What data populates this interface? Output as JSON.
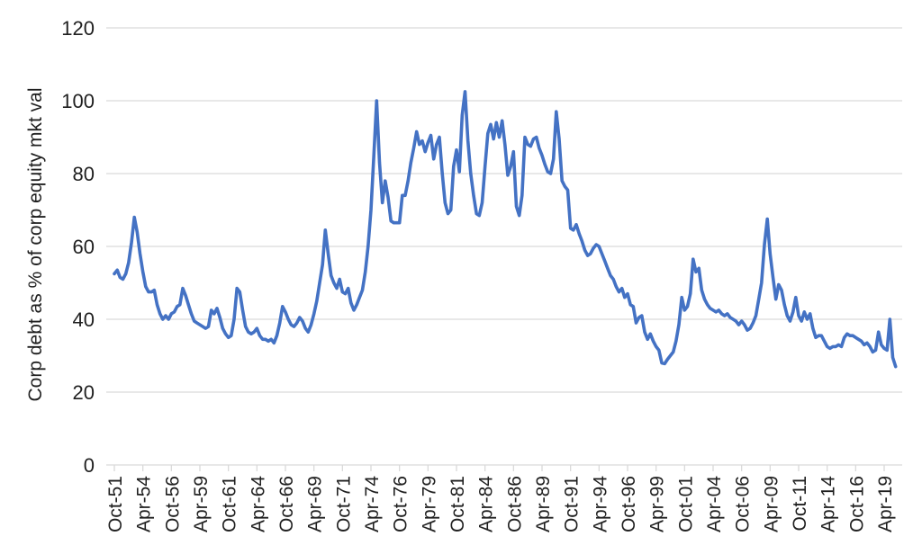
{
  "chart_data": {
    "type": "line",
    "title": "",
    "xlabel": "",
    "ylabel": "Corp debt as % of corp equity mkt val",
    "ylim": [
      0,
      120
    ],
    "y_ticks": [
      0,
      20,
      40,
      60,
      80,
      100,
      120
    ],
    "grid": "horizontal",
    "legend_position": "none",
    "line_color": "#4472C4",
    "axis_color": "#D9D9D9",
    "text_color": "#1F1F1F",
    "background_color": "#FFFFFF",
    "x_start": "1951-Q4",
    "x_end": "2020-Q2",
    "frequency": "quarterly",
    "x_ticks_every_n_points": 10,
    "x_tick_labels": [
      "Oct-51",
      "Apr-54",
      "Oct-56",
      "Apr-59",
      "Oct-61",
      "Apr-64",
      "Oct-66",
      "Apr-69",
      "Oct-71",
      "Apr-74",
      "Oct-76",
      "Apr-79",
      "Oct-81",
      "Apr-84",
      "Oct-86",
      "Apr-89",
      "Oct-91",
      "Apr-94",
      "Oct-96",
      "Apr-99",
      "Oct-01",
      "Apr-04",
      "Oct-06",
      "Apr-09",
      "Oct-11",
      "Apr-14",
      "Oct-16",
      "Apr-19"
    ],
    "series": [
      {
        "name": "Corp debt as % of corp equity mkt val",
        "values": [
          52.5,
          53.5,
          51.5,
          51,
          52.5,
          55.5,
          61,
          68,
          64,
          58,
          53,
          49,
          47.5,
          47.5,
          48,
          44,
          41.5,
          40,
          41,
          40,
          41.5,
          42,
          43.5,
          44,
          48.5,
          46.5,
          44,
          41.5,
          39.5,
          39,
          38.5,
          38,
          37.5,
          38,
          42.5,
          41.5,
          43,
          40.5,
          37.5,
          36,
          35,
          35.5,
          40,
          48.5,
          47.5,
          42.5,
          38,
          36.5,
          36,
          36.5,
          37.5,
          35.5,
          34.5,
          34.5,
          34,
          34.5,
          33.5,
          35.5,
          39,
          43.5,
          42,
          40,
          38.5,
          38,
          39,
          40.5,
          39.5,
          37.5,
          36.5,
          38.5,
          41.5,
          45,
          50,
          55,
          64.5,
          58,
          52,
          50,
          48.5,
          51,
          47.5,
          47,
          48.5,
          44.5,
          42.5,
          44,
          46,
          48,
          53,
          60,
          70,
          85,
          100,
          83,
          72,
          78,
          73.5,
          67,
          66.5,
          66.5,
          66.5,
          74,
          74,
          78,
          83,
          87,
          91.5,
          88,
          89,
          86,
          88.5,
          90.5,
          84,
          88,
          90,
          80,
          72,
          69,
          70,
          82,
          86.5,
          80.5,
          96,
          102.5,
          89,
          80,
          74,
          69,
          68.5,
          72,
          82,
          91,
          93.5,
          89.5,
          94,
          90,
          94.5,
          88,
          79.5,
          82,
          86,
          71,
          68.5,
          74,
          90,
          88,
          87.5,
          89.5,
          90,
          87,
          85,
          82.5,
          80.5,
          80,
          84,
          97,
          89.5,
          78,
          76.5,
          75.5,
          65,
          64.5,
          66,
          63.5,
          61.5,
          59,
          57.5,
          58,
          59.5,
          60.5,
          60,
          58,
          56,
          54,
          52,
          51,
          49,
          47.5,
          48.5,
          46,
          47,
          44,
          43.5,
          39,
          40.5,
          41,
          36.5,
          34.5,
          36,
          34,
          32.5,
          31.5,
          28,
          27.8,
          29,
          30,
          31,
          34,
          38.5,
          46,
          42.5,
          43.5,
          47,
          56.5,
          53,
          54,
          48,
          45.5,
          44,
          43,
          42.5,
          42,
          42.5,
          41.5,
          41,
          41.5,
          40.5,
          40,
          39.5,
          38.5,
          39.5,
          38.5,
          37,
          37.5,
          39,
          41,
          45.5,
          50,
          60.5,
          67.5,
          58,
          51.5,
          45.5,
          49.5,
          48,
          44,
          41,
          39.5,
          42,
          46,
          41,
          39.5,
          42,
          40,
          41.5,
          37.5,
          35,
          35.5,
          35.5,
          34,
          32.5,
          32,
          32.5,
          32.5,
          33,
          32.5,
          35,
          36,
          35.5,
          35.5,
          35,
          34.5,
          34,
          33,
          33.5,
          32.5,
          31,
          31.5,
          36.5,
          33,
          32,
          31.5,
          40,
          29.5,
          27
        ]
      }
    ]
  }
}
